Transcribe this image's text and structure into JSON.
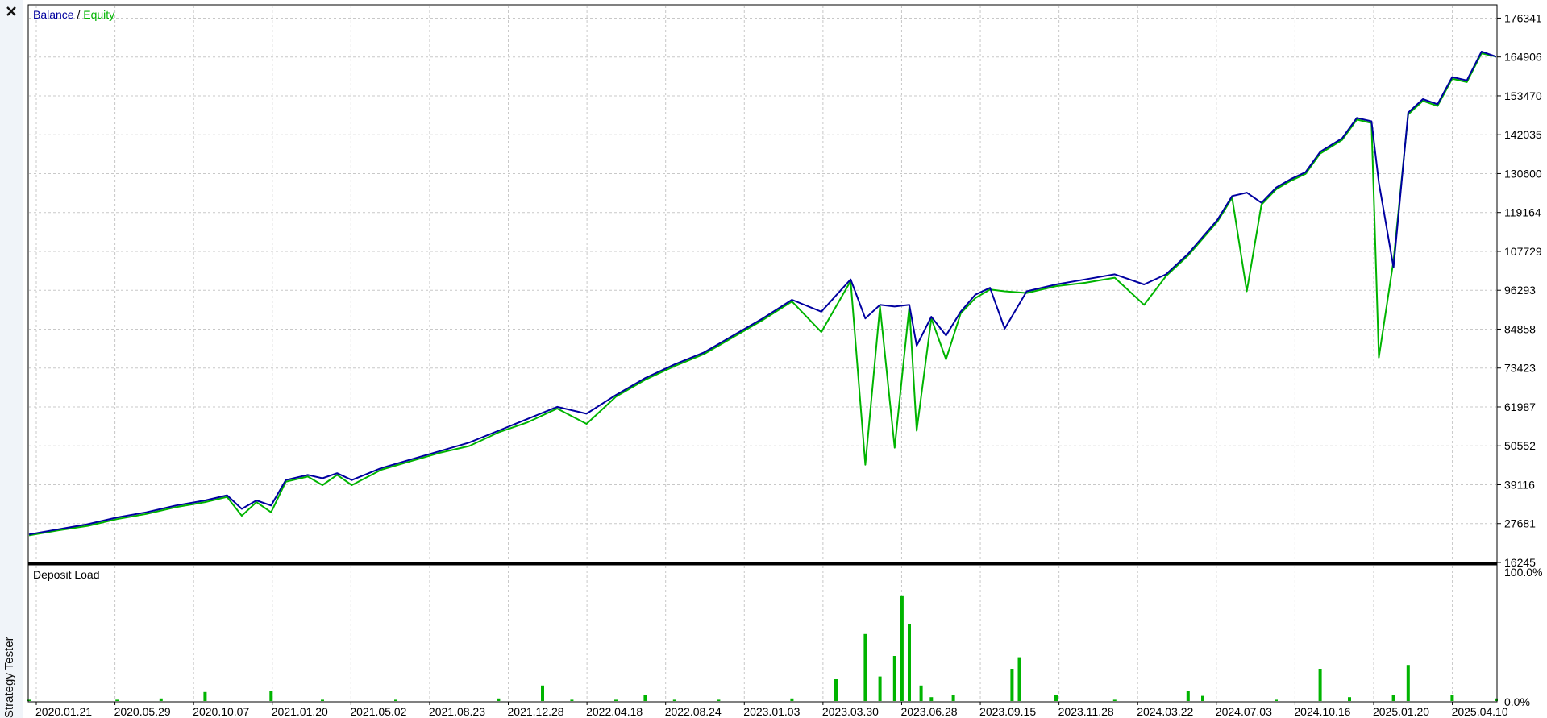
{
  "window": {
    "side_panel_label": "Strategy Tester"
  },
  "icons": {
    "close": "close-icon"
  },
  "colors": {
    "balance": "#0000a0",
    "equity": "#00b400",
    "deposit_load": "#00b400",
    "grid": "#c8c8c8",
    "frame": "#000000"
  },
  "legend": {
    "balance": "Balance",
    "separator": " / ",
    "equity": "Equity"
  },
  "deposit_panel": {
    "title": "Deposit Load"
  },
  "chart_data": [
    {
      "type": "line",
      "legend_placement": "top-left",
      "grid": true,
      "y_ticks": [
        16245,
        27681,
        39116,
        50552,
        61987,
        73423,
        84858,
        96293,
        107729,
        119164,
        130600,
        142035,
        153470,
        164906,
        176341
      ],
      "y_tick_labels": [
        "16245",
        "27681",
        "39116",
        "50552",
        "61987",
        "73423",
        "84858",
        "96293",
        "107729",
        "119164",
        "130600",
        "142035",
        "153470",
        "164906",
        "176341"
      ],
      "ylim": [
        16245,
        180000
      ],
      "x_labels": [
        "2020.01.21",
        "2020.05.29",
        "2020.10.07",
        "2021.01.20",
        "2021.05.02",
        "2021.08.23",
        "2021.12.28",
        "2022.04.18",
        "2022.08.24",
        "2023.01.03",
        "2023.03.30",
        "2023.06.28",
        "2023.09.15",
        "2023.11.28",
        "2024.03.22",
        "2024.07.03",
        "2024.10.16",
        "2025.01.20",
        "2025.04.10"
      ],
      "x_range": [
        0,
        100
      ],
      "series": [
        {
          "name": "Balance",
          "x": [
            0,
            2,
            4,
            6,
            8,
            10,
            12,
            13.5,
            14.5,
            15.5,
            16.5,
            17.5,
            19,
            20,
            21,
            22,
            24,
            26,
            28,
            30,
            32,
            34,
            36,
            38,
            40,
            42,
            44,
            46,
            48,
            50,
            52,
            54,
            56,
            57,
            58,
            59,
            60,
            60.5,
            61.5,
            62.5,
            63.5,
            64.5,
            65.5,
            66.5,
            68,
            70,
            72,
            74,
            76,
            77.5,
            79,
            80,
            81,
            82,
            83,
            84,
            85,
            86,
            87,
            88,
            89.5,
            90.5,
            91.5,
            92,
            93,
            94,
            95,
            96,
            97,
            98,
            99,
            100
          ],
          "values": [
            24500,
            26000,
            27500,
            29500,
            31000,
            33000,
            34500,
            36000,
            32000,
            34500,
            33000,
            40500,
            42000,
            41000,
            42500,
            40500,
            44000,
            46500,
            49000,
            51500,
            55000,
            58500,
            62000,
            60000,
            65500,
            70500,
            74500,
            78000,
            83000,
            88000,
            93500,
            90000,
            99500,
            88000,
            92000,
            91500,
            92000,
            80000,
            88500,
            83000,
            90000,
            95000,
            97000,
            85000,
            96000,
            98000,
            99500,
            101000,
            98000,
            101000,
            107000,
            112000,
            117000,
            124000,
            125000,
            122000,
            126500,
            129000,
            131000,
            137000,
            141000,
            147000,
            146000,
            128000,
            103000,
            148500,
            152500,
            151000,
            159000,
            158000,
            166500,
            165000
          ]
        },
        {
          "name": "Equity",
          "x": [
            0,
            2,
            4,
            6,
            8,
            10,
            12,
            13.5,
            14.5,
            15.5,
            16.5,
            17.5,
            19,
            20,
            21,
            22,
            24,
            26,
            28,
            30,
            32,
            34,
            36,
            38,
            40,
            42,
            44,
            46,
            48,
            50,
            52,
            54,
            56,
            57,
            58,
            59,
            60,
            60.5,
            61.5,
            62.5,
            63.5,
            64.5,
            65.5,
            66.5,
            68,
            70,
            72,
            74,
            76,
            77.5,
            79,
            80,
            81,
            82,
            83,
            84,
            85,
            86,
            87,
            88,
            89.5,
            90.5,
            91.5,
            92,
            93,
            94,
            95,
            96,
            97,
            98,
            99,
            100
          ],
          "values": [
            24200,
            25700,
            27000,
            29000,
            30500,
            32500,
            34000,
            35500,
            30000,
            34000,
            31000,
            40000,
            41500,
            39000,
            42000,
            39000,
            43500,
            46000,
            48500,
            50500,
            54500,
            57500,
            61500,
            57000,
            65000,
            70000,
            74000,
            77500,
            82500,
            87500,
            93000,
            84000,
            99000,
            45000,
            91500,
            50000,
            91500,
            55000,
            88000,
            76000,
            89500,
            94000,
            96500,
            96000,
            95500,
            97500,
            98500,
            100000,
            92000,
            100500,
            106500,
            111500,
            116500,
            123500,
            96000,
            121500,
            126000,
            128500,
            130500,
            136500,
            140500,
            146500,
            145500,
            76500,
            105000,
            148000,
            152000,
            150500,
            158500,
            157500,
            166000,
            165000
          ]
        }
      ]
    },
    {
      "type": "bar",
      "title": "Deposit Load",
      "y_tick_labels": [
        "100.0%",
        "0.0%"
      ],
      "ylim": [
        0,
        100
      ],
      "x_range": [
        0,
        100
      ],
      "x": [
        0,
        6,
        9,
        12,
        16.5,
        20,
        25,
        32,
        35,
        37,
        40,
        42,
        44,
        47,
        52,
        55,
        57,
        58,
        59,
        59.5,
        60,
        60.8,
        61.5,
        63,
        67,
        67.5,
        70,
        74,
        79,
        80,
        85,
        88,
        90,
        93,
        94,
        97,
        100
      ],
      "values": [
        1,
        1,
        2,
        7,
        8,
        1,
        1,
        2,
        12,
        1,
        1,
        5,
        1,
        1,
        2,
        17,
        52,
        19,
        35,
        82,
        60,
        12,
        3,
        5,
        25,
        34,
        5,
        1,
        8,
        4,
        1,
        25,
        3,
        5,
        28,
        5,
        2
      ]
    }
  ]
}
